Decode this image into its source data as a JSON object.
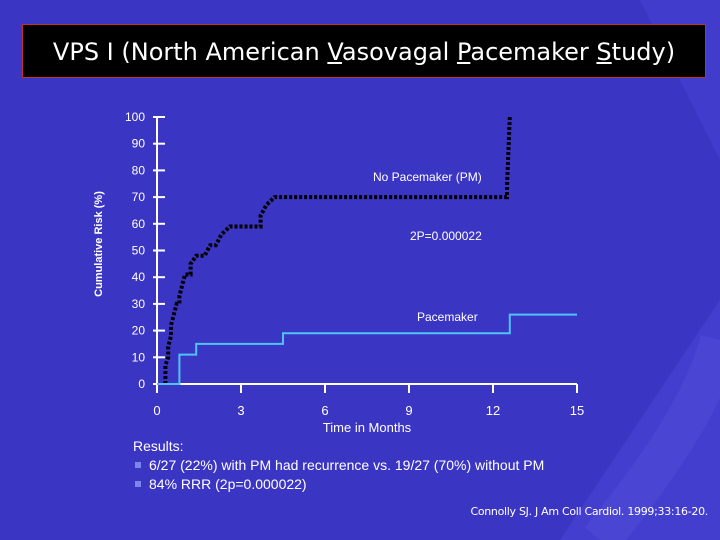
{
  "slide": {
    "title_parts": [
      "VPS I  (North American ",
      "V",
      "asovagal ",
      "P",
      "acemaker ",
      "S",
      "tudy)"
    ],
    "colors": {
      "background": "#3b35c4",
      "title_bar": "#000000",
      "title_border": "#c23030",
      "text": "#ffffff"
    }
  },
  "chart_data": {
    "type": "line",
    "xlabel": "Time in Months",
    "ylabel": "Cumulative Risk (%)",
    "xticks": [
      0,
      3,
      6,
      9,
      12,
      15
    ],
    "yticks": [
      0,
      10,
      20,
      30,
      40,
      50,
      60,
      70,
      80,
      90,
      100
    ],
    "xlim": [
      0,
      15
    ],
    "ylim": [
      0,
      100
    ],
    "annotations": {
      "no_pm_label": "No Pacemaker (PM)",
      "p_value": "2P=0.000022",
      "pm_label": "Pacemaker"
    },
    "series": [
      {
        "name": "No Pacemaker (PM)",
        "color": "#000000",
        "style": "dotted",
        "step": true,
        "points": [
          [
            0.3,
            0
          ],
          [
            0.3,
            4
          ],
          [
            0.3,
            7
          ],
          [
            0.4,
            10
          ],
          [
            0.4,
            14
          ],
          [
            0.5,
            18
          ],
          [
            0.5,
            22
          ],
          [
            0.6,
            26
          ],
          [
            0.7,
            30
          ],
          [
            0.8,
            30
          ],
          [
            0.8,
            33
          ],
          [
            0.9,
            37
          ],
          [
            1.0,
            41
          ],
          [
            1.2,
            41
          ],
          [
            1.2,
            45
          ],
          [
            1.4,
            48
          ],
          [
            1.7,
            48
          ],
          [
            1.9,
            52
          ],
          [
            2.1,
            52
          ],
          [
            2.3,
            56
          ],
          [
            2.6,
            59
          ],
          [
            3.7,
            59
          ],
          [
            3.7,
            63
          ],
          [
            3.9,
            67
          ],
          [
            4.2,
            70
          ],
          [
            12.5,
            70
          ],
          [
            12.5,
            74
          ],
          [
            12.6,
            100
          ]
        ]
      },
      {
        "name": "Pacemaker",
        "color": "#4fc3f7",
        "style": "solid",
        "step": true,
        "points": [
          [
            0,
            0
          ],
          [
            0.8,
            0
          ],
          [
            0.8,
            4
          ],
          [
            0.8,
            11
          ],
          [
            1.4,
            11
          ],
          [
            1.4,
            15
          ],
          [
            4.5,
            15
          ],
          [
            4.5,
            19
          ],
          [
            12.6,
            19
          ],
          [
            12.6,
            26
          ],
          [
            15,
            26
          ]
        ]
      }
    ]
  },
  "results": {
    "heading": "Results:",
    "items": [
      "6/27 (22%) with PM had recurrence vs. 19/27 (70%) without PM",
      "84% RRR (2p=0.000022)"
    ]
  },
  "citation": "Connolly SJ. J Am Coll Cardiol. 1999;33:16-20."
}
